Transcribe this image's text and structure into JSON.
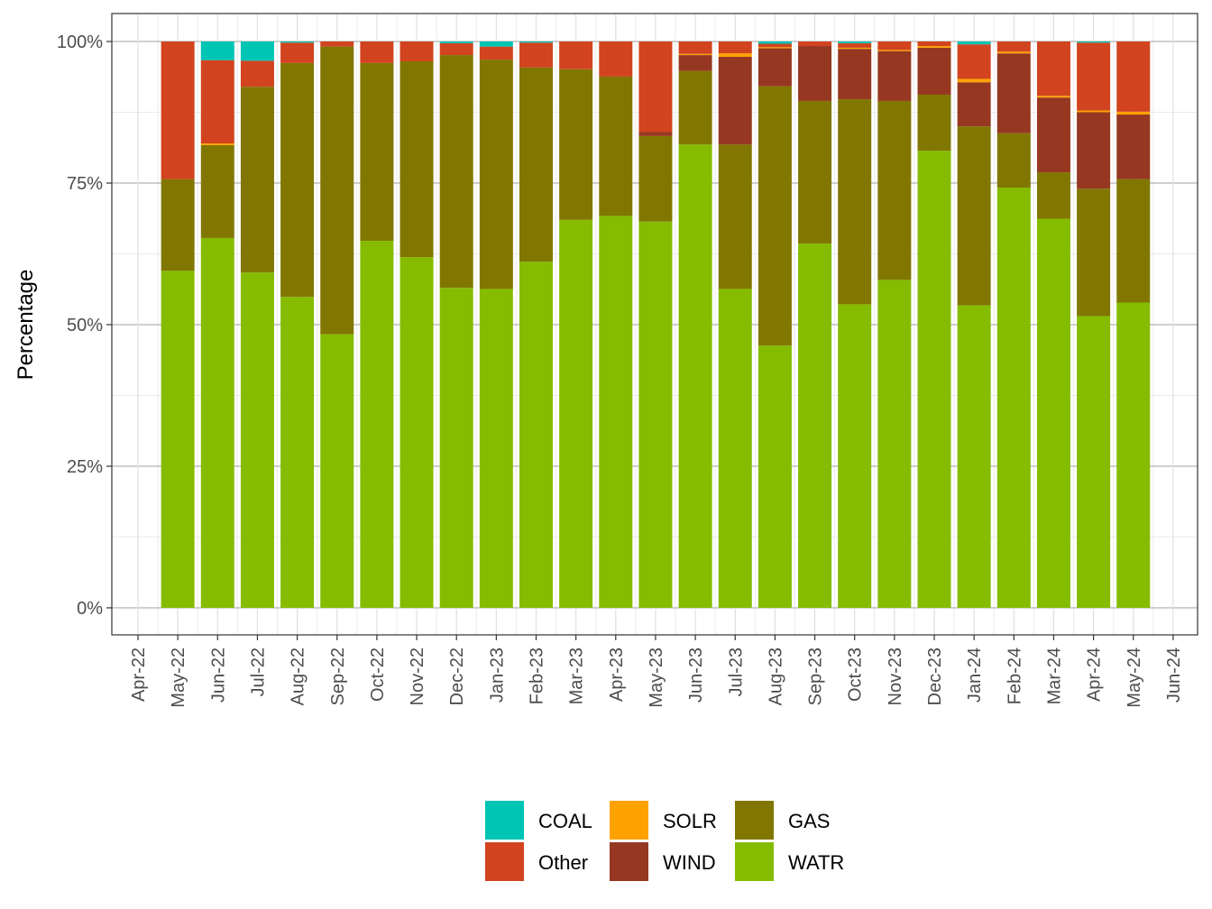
{
  "chart_data": {
    "type": "bar",
    "stacked": true,
    "ylabel": "Percentage",
    "xlabel": "",
    "ylim": [
      0,
      100
    ],
    "y_ticks": [
      "0%",
      "25%",
      "50%",
      "75%",
      "100%"
    ],
    "x_tick_labels": [
      "Apr-22",
      "May-22",
      "Jun-22",
      "Jul-22",
      "Aug-22",
      "Sep-22",
      "Oct-22",
      "Nov-22",
      "Dec-22",
      "Jan-23",
      "Feb-23",
      "Mar-23",
      "Apr-23",
      "May-23",
      "Jun-23",
      "Jul-23",
      "Aug-23",
      "Sep-23",
      "Oct-23",
      "Nov-23",
      "Dec-23",
      "Jan-24",
      "Feb-24",
      "Mar-24",
      "Apr-24",
      "May-24",
      "Jun-24"
    ],
    "categories": [
      "May-22",
      "Jun-22",
      "Jul-22",
      "Aug-22",
      "Sep-22",
      "Oct-22",
      "Nov-22",
      "Dec-22",
      "Jan-23",
      "Feb-23",
      "Mar-23",
      "Apr-23",
      "May-23",
      "Jun-23",
      "Jul-23",
      "Aug-23",
      "Sep-23",
      "Oct-23",
      "Nov-23",
      "Dec-23",
      "Jan-24",
      "Feb-24",
      "Mar-24",
      "Apr-24",
      "May-24"
    ],
    "grid": true,
    "legend_position": "bottom",
    "series": [
      {
        "name": "WATR",
        "color": "#85BC00",
        "values": [
          59.5,
          65.3,
          59.2,
          54.9,
          48.3,
          64.8,
          61.9,
          56.5,
          56.3,
          61.1,
          68.5,
          69.2,
          68.2,
          81.8,
          56.3,
          46.3,
          64.3,
          53.6,
          57.9,
          80.7,
          53.4,
          74.2,
          68.7,
          51.5,
          53.9
        ]
      },
      {
        "name": "GAS",
        "color": "#817700",
        "values": [
          16.2,
          16.4,
          32.8,
          41.3,
          50.8,
          31.4,
          34.6,
          41.1,
          40.5,
          34.3,
          26.6,
          24.6,
          15.1,
          13.0,
          25.5,
          45.8,
          25.2,
          36.2,
          31.6,
          9.9,
          31.6,
          9.6,
          8.2,
          22.5,
          21.8
        ]
      },
      {
        "name": "WIND",
        "color": "#963821",
        "values": [
          0,
          0,
          0,
          0,
          0,
          0,
          0,
          0,
          0,
          0,
          0,
          0,
          0.7,
          2.8,
          15.5,
          6.7,
          9.7,
          8.9,
          8.8,
          8.3,
          7.8,
          14.1,
          13.2,
          13.5,
          11.4
        ]
      },
      {
        "name": "SOLR",
        "color": "#FFA200",
        "values": [
          0,
          0.3,
          0,
          0,
          0,
          0,
          0,
          0,
          0,
          0,
          0,
          0,
          0,
          0.2,
          0.6,
          0.2,
          0,
          0.2,
          0.2,
          0.3,
          0.6,
          0.3,
          0.3,
          0.3,
          0.5
        ]
      },
      {
        "name": "Other",
        "color": "#D1441F",
        "values": [
          24.3,
          14.7,
          4.6,
          3.6,
          0.9,
          3.8,
          3.5,
          2.1,
          2.3,
          4.4,
          4.9,
          6.2,
          16.0,
          2.2,
          2.1,
          0.6,
          0.8,
          0.8,
          1.5,
          0.8,
          6.1,
          1.8,
          9.6,
          12.0,
          12.4
        ]
      },
      {
        "name": "COAL",
        "color": "#00C4B4",
        "values": [
          0,
          3.3,
          3.4,
          0.2,
          0,
          0,
          0,
          0.3,
          0.9,
          0.2,
          0,
          0,
          0,
          0,
          0,
          0.4,
          0,
          0.3,
          0,
          0,
          0.5,
          0,
          0,
          0.2,
          0
        ]
      }
    ],
    "legend": [
      [
        "COAL",
        "SOLR",
        "GAS"
      ],
      [
        "Other",
        "WIND",
        "WATR"
      ]
    ]
  }
}
